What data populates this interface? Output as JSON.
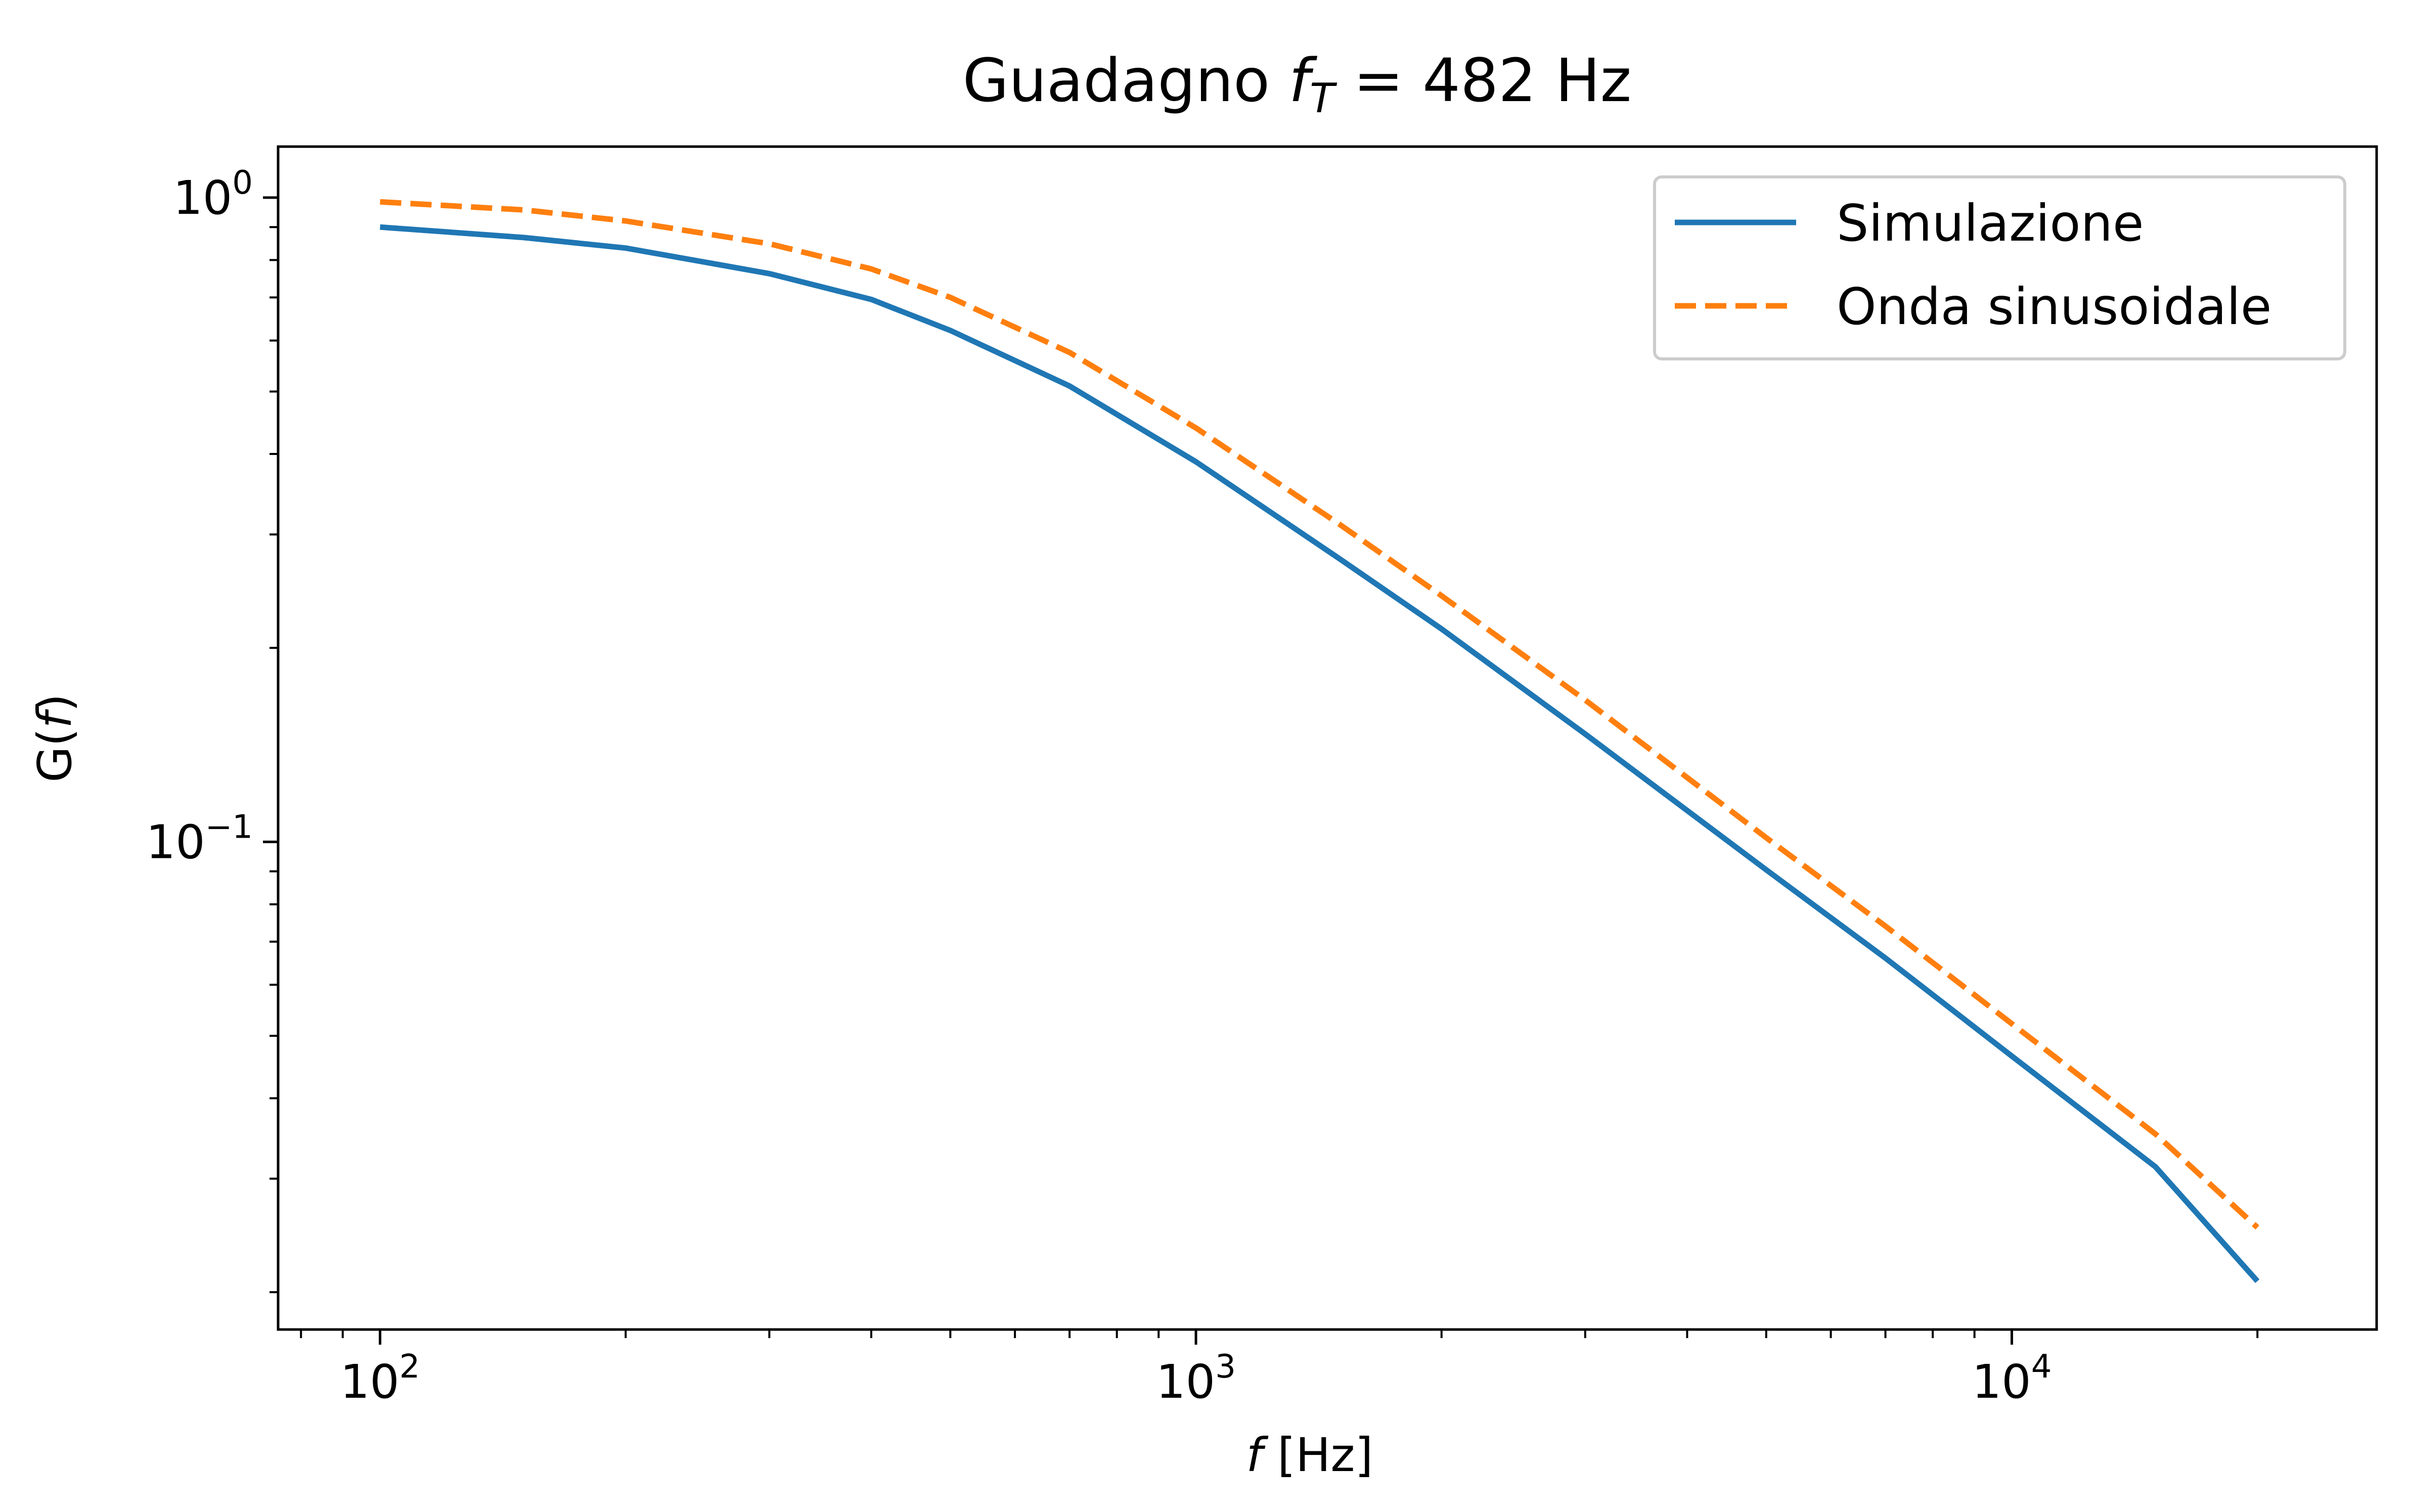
{
  "chart_data": {
    "type": "line",
    "title": "Guadagno f_T = 482 Hz",
    "title_parts": {
      "main": "Guadagno ",
      "var": "f",
      "sub": "T",
      "rest": " = 482 Hz"
    },
    "xlabel": {
      "var": "f",
      "unit": " [Hz]"
    },
    "ylabel": {
      "pre": "G(",
      "var": "f",
      "post": ")"
    },
    "xscale": "log",
    "yscale": "log",
    "xlim": [
      75,
      28000
    ],
    "ylim": [
      0.0175,
      1.2
    ],
    "x_ticks": [
      {
        "value": 100,
        "base": "10",
        "exp": "2"
      },
      {
        "value": 1000,
        "base": "10",
        "exp": "3"
      },
      {
        "value": 10000,
        "base": "10",
        "exp": "4"
      }
    ],
    "y_ticks": [
      {
        "value": 1,
        "base": "10",
        "exp": "0"
      },
      {
        "value": 0.1,
        "base": "10",
        "exp": "−1"
      }
    ],
    "grid": false,
    "legend": "top-right",
    "x": [
      100,
      150,
      200,
      300,
      400,
      500,
      700,
      1000,
      1500,
      2000,
      3000,
      5000,
      7000,
      10000,
      15000,
      20000
    ],
    "series": [
      {
        "name": "Simulazione",
        "color": "#1f77b4",
        "dash": "solid",
        "values": [
          0.9,
          0.867,
          0.835,
          0.762,
          0.695,
          0.622,
          0.51,
          0.389,
          0.275,
          0.214,
          0.147,
          0.0905,
          0.066,
          0.0465,
          0.0313,
          0.0208
        ]
      },
      {
        "name": "Onda sinusoidale",
        "color": "#ff7f0e",
        "dash": "dashed",
        "values": [
          0.985,
          0.957,
          0.92,
          0.848,
          0.775,
          0.7,
          0.575,
          0.439,
          0.311,
          0.241,
          0.166,
          0.1015,
          0.074,
          0.0522,
          0.0352,
          0.0252
        ]
      }
    ]
  }
}
